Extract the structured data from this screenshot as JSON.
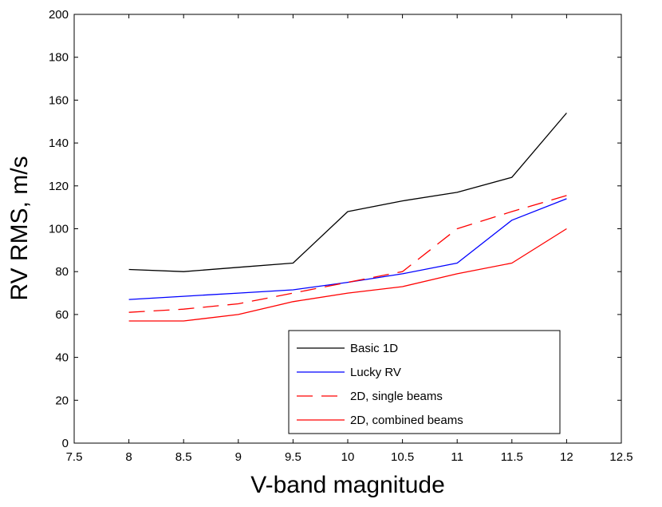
{
  "chart_data": {
    "type": "line",
    "title": "",
    "xlabel": "V-band magnitude",
    "ylabel": "RV RMS, m/s",
    "xlim": [
      7.5,
      12.5
    ],
    "ylim": [
      0,
      200
    ],
    "xticks": [
      7.5,
      8,
      8.5,
      9,
      9.5,
      10,
      10.5,
      11,
      11.5,
      12,
      12.5
    ],
    "xtick_labels": [
      "7.5",
      "8",
      "8.5",
      "9",
      "9.5",
      "10",
      "10.5",
      "11",
      "11.5",
      "12",
      "12.5"
    ],
    "yticks": [
      0,
      20,
      40,
      60,
      80,
      100,
      120,
      140,
      160,
      180,
      200
    ],
    "ytick_labels": [
      "0",
      "20",
      "40",
      "60",
      "80",
      "100",
      "120",
      "140",
      "160",
      "180",
      "200"
    ],
    "grid": false,
    "legend_position": "bottom-right",
    "x": [
      8,
      8.5,
      9,
      9.5,
      10,
      10.5,
      11,
      11.5,
      12
    ],
    "series": [
      {
        "name": "Basic 1D",
        "color": "#000000",
        "dash": "solid",
        "values": [
          81,
          80,
          82,
          84,
          108,
          113,
          117,
          124,
          154
        ]
      },
      {
        "name": "Lucky RV",
        "color": "#0000ff",
        "dash": "solid",
        "values": [
          67,
          68.5,
          70,
          71.5,
          75,
          79,
          84,
          104,
          114
        ]
      },
      {
        "name": "2D, single beams",
        "color": "#ff0000",
        "dash": "dashed",
        "values": [
          61,
          62.5,
          65,
          70,
          75,
          80,
          100,
          108,
          115.5
        ]
      },
      {
        "name": "2D, combined beams",
        "color": "#ff0000",
        "dash": "solid",
        "values": [
          57,
          57,
          60,
          66,
          70,
          73,
          79,
          84,
          100
        ]
      }
    ]
  }
}
